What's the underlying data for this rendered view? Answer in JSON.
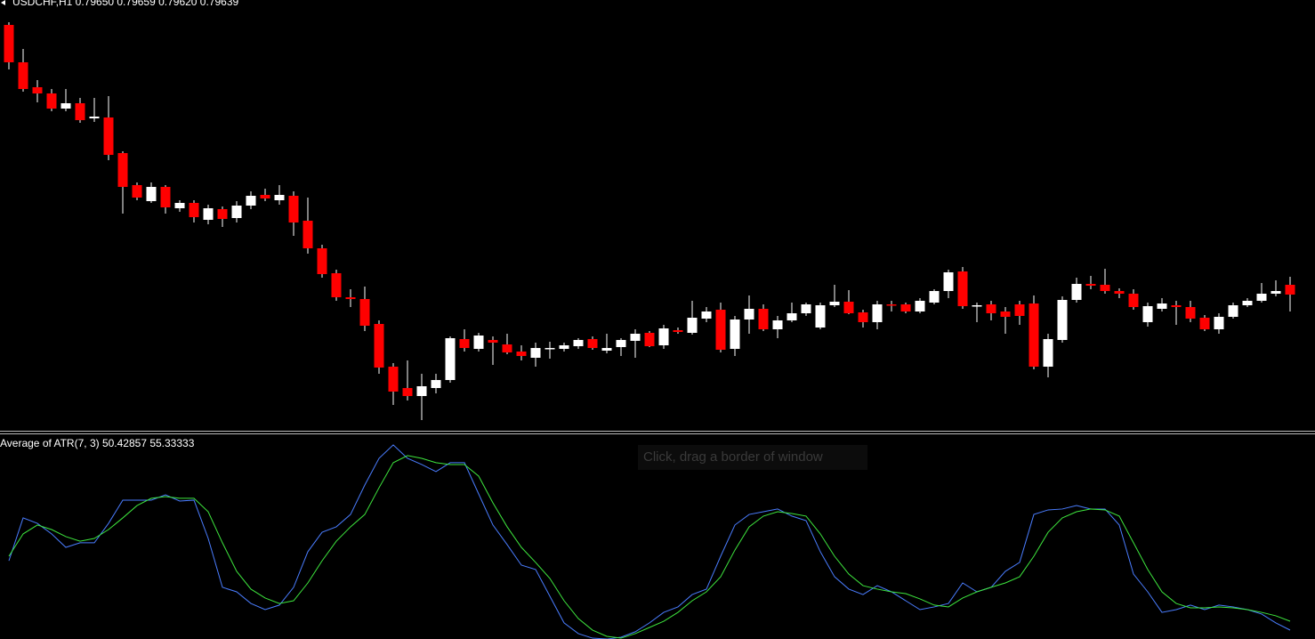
{
  "chart_data": [
    {
      "type": "candlestick",
      "title": "USDCHF,H1  0.79650 0.79659 0.79620 0.79639",
      "up_color": "#ffffff",
      "down_color": "#ff0000",
      "wick_color": "#ffffff",
      "ylim": [
        0.79486,
        0.7997
      ],
      "open": [
        0.79942,
        0.799,
        0.79872,
        0.79865,
        0.79848,
        0.79854,
        0.79837,
        0.79838,
        0.79798,
        0.79762,
        0.79744,
        0.7976,
        0.79736,
        0.79742,
        0.79723,
        0.79735,
        0.79725,
        0.79739,
        0.79751,
        0.79745,
        0.7975,
        0.79722,
        0.79691,
        0.79663,
        0.79636,
        0.79634,
        0.79606,
        0.79558,
        0.79534,
        0.79525,
        0.79534,
        0.79543,
        0.79589,
        0.79578,
        0.79588,
        0.79583,
        0.79575,
        0.79568,
        0.79578,
        0.79578,
        0.79581,
        0.79589,
        0.79576,
        0.7958,
        0.79587,
        0.79596,
        0.79582,
        0.79599,
        0.79596,
        0.79612,
        0.79622,
        0.79578,
        0.79611,
        0.79623,
        0.796,
        0.7961,
        0.79618,
        0.79602,
        0.79627,
        0.79631,
        0.79619,
        0.79608,
        0.79628,
        0.79628,
        0.7962,
        0.7963,
        0.79643,
        0.79665,
        0.79626,
        0.79628,
        0.7962,
        0.79628,
        0.79629,
        0.79558,
        0.79588,
        0.79633,
        0.79651,
        0.7965,
        0.79643,
        0.7964,
        0.79608,
        0.79623,
        0.79627,
        0.79625,
        0.79613,
        0.796,
        0.79614,
        0.79627,
        0.79632,
        0.7964,
        0.7965
      ],
      "high": [
        0.79945,
        0.79915,
        0.7988,
        0.7987,
        0.7987,
        0.7986,
        0.7986,
        0.79862,
        0.798,
        0.79765,
        0.79765,
        0.79762,
        0.79745,
        0.79745,
        0.7974,
        0.79738,
        0.79744,
        0.79755,
        0.79758,
        0.79762,
        0.79755,
        0.79748,
        0.79695,
        0.79667,
        0.79645,
        0.79648,
        0.7961,
        0.79562,
        0.79565,
        0.7955,
        0.7955,
        0.79592,
        0.796,
        0.79596,
        0.79592,
        0.79595,
        0.79582,
        0.79585,
        0.79586,
        0.79585,
        0.7959,
        0.79592,
        0.79595,
        0.7959,
        0.796,
        0.79598,
        0.79605,
        0.79602,
        0.79632,
        0.79625,
        0.7963,
        0.79615,
        0.79638,
        0.79628,
        0.79615,
        0.7963,
        0.7963,
        0.7963,
        0.7965,
        0.79644,
        0.79622,
        0.79632,
        0.79632,
        0.7963,
        0.79635,
        0.79645,
        0.79667,
        0.7967,
        0.7963,
        0.79632,
        0.79625,
        0.79632,
        0.79638,
        0.79595,
        0.79637,
        0.79658,
        0.7966,
        0.79668,
        0.79646,
        0.79645,
        0.7963,
        0.79635,
        0.79632,
        0.79632,
        0.79616,
        0.79618,
        0.7963,
        0.79635,
        0.79652,
        0.79655,
        0.79659
      ],
      "low": [
        0.79892,
        0.79867,
        0.79855,
        0.79845,
        0.79845,
        0.79832,
        0.79833,
        0.7979,
        0.7973,
        0.79745,
        0.79742,
        0.7973,
        0.79732,
        0.7972,
        0.79718,
        0.79715,
        0.7972,
        0.79735,
        0.79744,
        0.7974,
        0.79705,
        0.79685,
        0.79658,
        0.79632,
        0.79625,
        0.79598,
        0.7955,
        0.79515,
        0.7952,
        0.79498,
        0.79528,
        0.7954,
        0.79575,
        0.79575,
        0.7956,
        0.79572,
        0.79565,
        0.79558,
        0.79567,
        0.79575,
        0.79578,
        0.79577,
        0.79573,
        0.7957,
        0.79568,
        0.7958,
        0.79578,
        0.79595,
        0.79594,
        0.79608,
        0.79574,
        0.7957,
        0.79595,
        0.79598,
        0.7959,
        0.79608,
        0.79615,
        0.796,
        0.79625,
        0.79617,
        0.79602,
        0.796,
        0.7962,
        0.79618,
        0.79618,
        0.79628,
        0.79635,
        0.79623,
        0.79608,
        0.7961,
        0.79595,
        0.79605,
        0.79555,
        0.79546,
        0.79585,
        0.7963,
        0.79645,
        0.7964,
        0.79635,
        0.79622,
        0.79603,
        0.7962,
        0.79605,
        0.79608,
        0.79598,
        0.79595,
        0.79612,
        0.79625,
        0.7963,
        0.79637,
        0.7962
      ],
      "close": [
        0.799,
        0.7987,
        0.79865,
        0.79848,
        0.79854,
        0.79835,
        0.79839,
        0.79796,
        0.7976,
        0.79748,
        0.7976,
        0.79737,
        0.79742,
        0.79726,
        0.79736,
        0.79724,
        0.79739,
        0.7975,
        0.79747,
        0.79751,
        0.7972,
        0.79691,
        0.79662,
        0.79636,
        0.79634,
        0.79604,
        0.79557,
        0.7953,
        0.79525,
        0.79536,
        0.79543,
        0.7959,
        0.79579,
        0.79593,
        0.79585,
        0.79574,
        0.7957,
        0.79579,
        0.79579,
        0.79582,
        0.79588,
        0.79579,
        0.79579,
        0.79588,
        0.79595,
        0.79581,
        0.79601,
        0.79597,
        0.79613,
        0.7962,
        0.79577,
        0.79611,
        0.79623,
        0.796,
        0.7961,
        0.79618,
        0.79628,
        0.79627,
        0.79631,
        0.79618,
        0.79608,
        0.79628,
        0.79627,
        0.7962,
        0.79632,
        0.79643,
        0.79664,
        0.79626,
        0.79627,
        0.79618,
        0.79614,
        0.79615,
        0.79558,
        0.79589,
        0.79633,
        0.79651,
        0.79649,
        0.79643,
        0.7964,
        0.79625,
        0.79626,
        0.79629,
        0.79625,
        0.79612,
        0.796,
        0.79614,
        0.79627,
        0.79632,
        0.7964,
        0.79643,
        0.79639
      ]
    },
    {
      "type": "line",
      "title": "Average of ATR(7, 3) 50.42857 55.33333",
      "annotations": [
        "Click, drag a border of window"
      ],
      "ylim": [
        45.53,
        157.25
      ],
      "series": [
        {
          "color": "#4a7dff",
          "values": [
            88.6,
            112.2,
            109.2,
            103.4,
            96.0,
            98.5,
            98.5,
            109.2,
            122.0,
            122.0,
            122.0,
            124.9,
            121.5,
            122.0,
            100.9,
            74.0,
            71.5,
            65.1,
            61.7,
            64.2,
            74.0,
            93.6,
            104.3,
            107.3,
            114.1,
            130.3,
            145.0,
            152.4,
            145.0,
            141.6,
            137.7,
            142.6,
            142.6,
            125.4,
            108.3,
            97.5,
            86.2,
            83.8,
            69.1,
            54.4,
            48.5,
            46.0,
            45.5,
            46.5,
            49.5,
            54.4,
            60.2,
            63.2,
            70.0,
            73.0,
            91.1,
            108.3,
            114.1,
            115.6,
            117.1,
            113.2,
            110.7,
            93.6,
            79.8,
            73.0,
            70.0,
            74.9,
            71.5,
            66.6,
            61.7,
            63.2,
            65.1,
            76.4,
            71.5,
            74.0,
            82.8,
            87.7,
            114.1,
            116.6,
            117.1,
            119.0,
            117.1,
            117.1,
            108.3,
            81.3,
            71.5,
            60.2,
            61.7,
            64.2,
            61.7,
            64.2,
            63.2,
            61.7,
            59.3,
            54.4,
            50.42857
          ]
        },
        {
          "color": "#3ee63e",
          "values": [
            91.1,
            103.4,
            108.3,
            105.8,
            101.9,
            99.4,
            100.9,
            105.8,
            112.2,
            119.0,
            123.0,
            123.9,
            123.0,
            123.0,
            115.6,
            98.5,
            82.8,
            73.0,
            68.1,
            65.1,
            66.6,
            76.4,
            88.6,
            99.4,
            107.3,
            114.1,
            128.8,
            142.6,
            146.5,
            145.0,
            142.6,
            141.6,
            141.6,
            135.2,
            120.5,
            107.3,
            96.0,
            87.7,
            78.9,
            66.6,
            56.8,
            50.4,
            47.0,
            46.0,
            48.5,
            51.9,
            55.3,
            60.2,
            66.6,
            71.5,
            79.8,
            94.5,
            107.3,
            113.2,
            115.6,
            114.6,
            113.2,
            103.4,
            91.1,
            81.3,
            74.9,
            73.0,
            71.5,
            70.5,
            67.6,
            64.2,
            63.2,
            68.1,
            71.5,
            74.0,
            76.4,
            79.8,
            91.1,
            104.3,
            112.2,
            115.6,
            117.1,
            116.6,
            113.2,
            98.5,
            83.8,
            71.5,
            65.1,
            62.7,
            62.7,
            63.2,
            62.7,
            61.7,
            60.2,
            58.3,
            55.33333
          ]
        }
      ]
    }
  ]
}
